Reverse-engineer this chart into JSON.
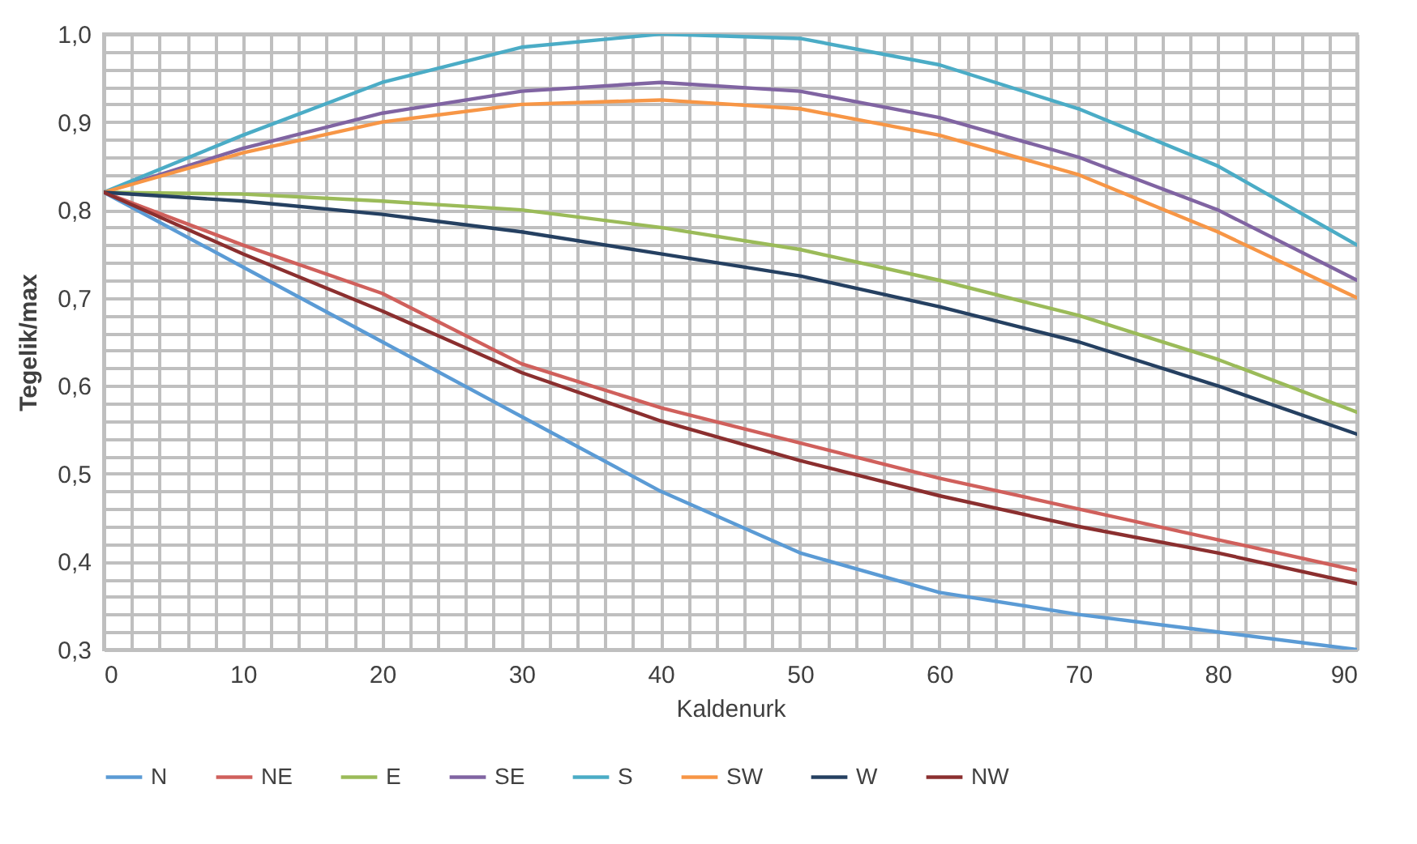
{
  "chart_data": {
    "type": "line",
    "xlabel": "Kaldenurk",
    "ylabel": "Tegelik/max",
    "x": [
      0,
      10,
      20,
      30,
      40,
      50,
      60,
      70,
      80,
      90
    ],
    "series": [
      {
        "name": "N",
        "color": "#5b9bd5",
        "values": [
          0.82,
          0.735,
          0.65,
          0.565,
          0.48,
          0.41,
          0.365,
          0.34,
          0.32,
          0.3
        ]
      },
      {
        "name": "NE",
        "color": "#d0605c",
        "values": [
          0.82,
          0.76,
          0.705,
          0.625,
          0.575,
          0.535,
          0.495,
          0.46,
          0.425,
          0.39
        ]
      },
      {
        "name": "E",
        "color": "#9bbb59",
        "values": [
          0.82,
          0.818,
          0.81,
          0.8,
          0.78,
          0.755,
          0.72,
          0.68,
          0.63,
          0.57
        ]
      },
      {
        "name": "SE",
        "color": "#8064a2",
        "values": [
          0.82,
          0.87,
          0.91,
          0.935,
          0.945,
          0.935,
          0.905,
          0.86,
          0.8,
          0.72
        ]
      },
      {
        "name": "S",
        "color": "#4bacc6",
        "values": [
          0.82,
          0.885,
          0.945,
          0.985,
          1.0,
          0.995,
          0.965,
          0.915,
          0.85,
          0.76
        ]
      },
      {
        "name": "SW",
        "color": "#f79646",
        "values": [
          0.82,
          0.865,
          0.9,
          0.92,
          0.925,
          0.915,
          0.885,
          0.84,
          0.775,
          0.7
        ]
      },
      {
        "name": "W",
        "color": "#254061",
        "values": [
          0.82,
          0.81,
          0.795,
          0.775,
          0.75,
          0.725,
          0.69,
          0.65,
          0.6,
          0.545
        ]
      },
      {
        "name": "NW",
        "color": "#8b2f2f",
        "values": [
          0.82,
          0.75,
          0.685,
          0.615,
          0.56,
          0.515,
          0.475,
          0.44,
          0.41,
          0.375
        ]
      }
    ],
    "xlim": [
      0,
      90
    ],
    "xticks": [
      0,
      10,
      20,
      30,
      40,
      50,
      60,
      70,
      80,
      90
    ],
    "ylim": [
      0.3,
      1.0
    ],
    "yticks": [
      {
        "value": 0.3,
        "label": "0,3"
      },
      {
        "value": 0.4,
        "label": "0,4"
      },
      {
        "value": 0.5,
        "label": "0,5"
      },
      {
        "value": 0.6,
        "label": "0,6"
      },
      {
        "value": 0.7,
        "label": "0,7"
      },
      {
        "value": 0.8,
        "label": "0,8"
      },
      {
        "value": 0.9,
        "label": "0,9"
      },
      {
        "value": 1.0,
        "label": "1,0"
      }
    ],
    "grid": true,
    "legend": "bottom",
    "line_style": "solid",
    "marker": "none"
  }
}
